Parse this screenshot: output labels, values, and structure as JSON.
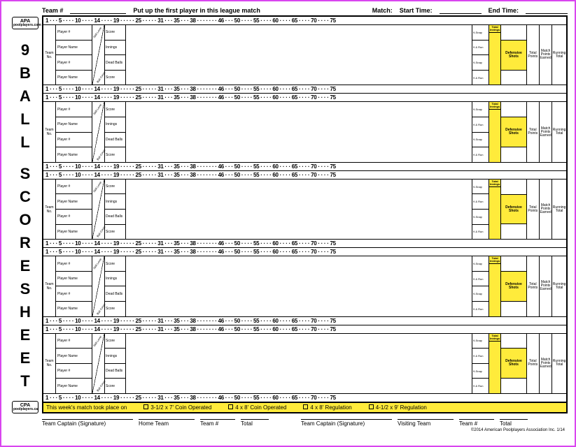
{
  "header": {
    "team_num_label": "Team #",
    "instruction": "Put up the first player in this league match",
    "match_label": "Match:",
    "start_label": "Start Time:",
    "end_label": "End Time:"
  },
  "title_vertical": "9BALL SCORESHEET",
  "logo": {
    "main": "APA",
    "sub": "poolplayers.com",
    "bottom_main": "CPA",
    "bottom_sub": "poolplayers.ca"
  },
  "ruler": {
    "text": "1 · · · 5 · · · · 10 · · · · 14 · · · · 19 · · · · · 25 · · · · · 31 · · · 35 · · · 38 · · · · · · · 46 · · · 50 · · · · 55 · · · · 60 · · · · 65 · · · · 70 · · · · 75",
    "bold_marks": [
      14,
      19,
      25,
      31,
      38,
      46,
      55,
      65,
      75
    ]
  },
  "player_fields": {
    "team_no": "Team\nNo.",
    "rows": [
      "Player #",
      "Player Name",
      "Player #",
      "Player Name"
    ],
    "skill": "Skill Level",
    "ball_count": "Ball Count",
    "stats": [
      "Score",
      "Innings",
      "Dead Balls",
      "Score"
    ],
    "snap": [
      "9-Snap",
      "9 & Run",
      "9-Snap",
      "9 & Run"
    ],
    "total_innings": "Total\nInnings",
    "defensive": "Defensive\nShots",
    "total_points": "Total\nPoints",
    "match_points": "Match\nPoints\nEarned",
    "running_total": "Running\nTotal"
  },
  "footer": {
    "intro": "This week's match took place on",
    "options": [
      "3-1/2 x 7' Coin Operated",
      "4 x 8' Coin Operated",
      "4 x 8' Regulation",
      "4-1/2 x 9' Regulation"
    ]
  },
  "signatures": {
    "captain": "Team Captain (Signature)",
    "home": "Home Team",
    "team_num": "Team #",
    "total": "Total",
    "visiting": "Visiting Team"
  },
  "copyright": "©2014 American Poolplayers Association Inc. 1/14",
  "colors": {
    "highlight": "#ffeb3b",
    "border": "#d946ef"
  },
  "match_count": 5
}
